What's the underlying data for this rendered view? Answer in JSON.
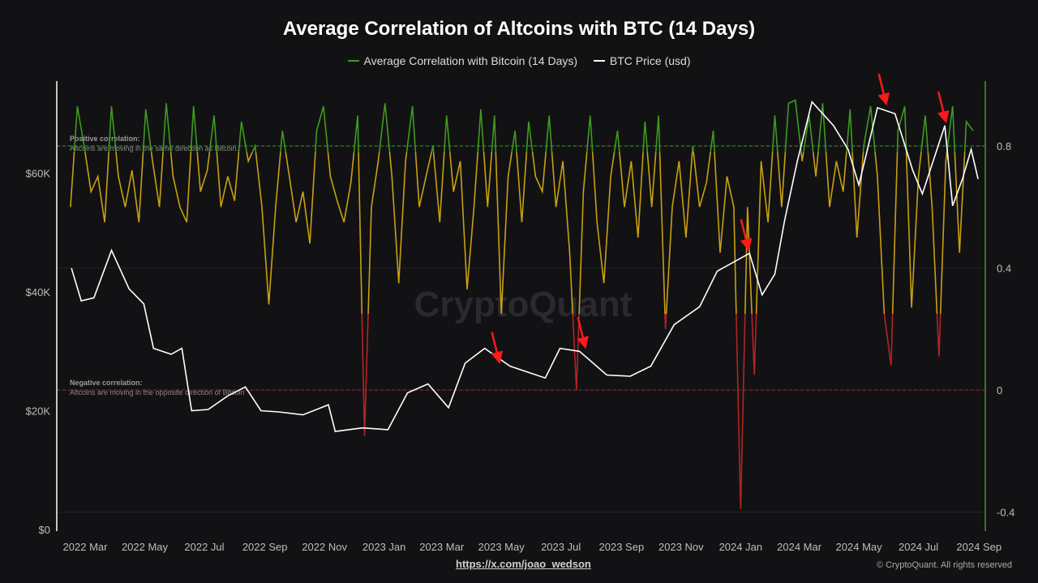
{
  "chart_data": {
    "type": "line",
    "title": "Average Correlation of Altcoins with BTC (14 Days)",
    "legend_placement": "top-center",
    "series": [
      {
        "name": "Average Correlation with Bitcoin (14 Days)",
        "axis": "right",
        "color": "#3f9a1e",
        "color_mid": "#c9a010",
        "color_low": "#b42424",
        "start_date": "2022-02-14",
        "interval": "weekly",
        "values": [
          0.6,
          0.93,
          0.8,
          0.65,
          0.7,
          0.55,
          0.93,
          0.7,
          0.6,
          0.72,
          0.55,
          0.92,
          0.75,
          0.6,
          0.94,
          0.7,
          0.6,
          0.55,
          0.93,
          0.65,
          0.72,
          0.9,
          0.6,
          0.7,
          0.62,
          0.88,
          0.75,
          0.8,
          0.6,
          0.28,
          0.6,
          0.85,
          0.7,
          0.55,
          0.65,
          0.48,
          0.85,
          0.93,
          0.7,
          0.62,
          0.55,
          0.68,
          0.9,
          -0.15,
          0.6,
          0.75,
          0.94,
          0.7,
          0.35,
          0.75,
          0.93,
          0.6,
          0.7,
          0.8,
          0.55,
          0.9,
          0.65,
          0.75,
          0.33,
          0.6,
          0.92,
          0.6,
          0.9,
          0.25,
          0.7,
          0.85,
          0.55,
          0.88,
          0.7,
          0.65,
          0.9,
          0.6,
          0.75,
          0.45,
          0.0,
          0.65,
          0.9,
          0.55,
          0.35,
          0.7,
          0.85,
          0.6,
          0.75,
          0.5,
          0.88,
          0.6,
          0.9,
          0.2,
          0.6,
          0.75,
          0.5,
          0.8,
          0.6,
          0.68,
          0.85,
          0.45,
          0.7,
          0.6,
          -0.39,
          0.6,
          0.05,
          0.75,
          0.55,
          0.9,
          0.6,
          0.94,
          0.95,
          0.75,
          0.9,
          0.7,
          0.94,
          0.6,
          0.75,
          0.65,
          0.92,
          0.5,
          0.8,
          0.93,
          0.7,
          0.25,
          0.08,
          0.85,
          0.93,
          0.27,
          0.7,
          0.9,
          0.6,
          0.11,
          0.75,
          0.93,
          0.45,
          0.88,
          0.85
        ]
      },
      {
        "name": "BTC Price (usd)",
        "axis": "left",
        "color": "#ffffff",
        "points": [
          [
            "2022-02-15",
            44000
          ],
          [
            "2022-02-25",
            38500
          ],
          [
            "2022-03-10",
            39000
          ],
          [
            "2022-03-28",
            47000
          ],
          [
            "2022-04-15",
            40500
          ],
          [
            "2022-04-30",
            38000
          ],
          [
            "2022-05-10",
            30500
          ],
          [
            "2022-05-28",
            29500
          ],
          [
            "2022-06-08",
            30500
          ],
          [
            "2022-06-18",
            20000
          ],
          [
            "2022-07-05",
            20200
          ],
          [
            "2022-07-25",
            22500
          ],
          [
            "2022-08-12",
            24000
          ],
          [
            "2022-08-28",
            20000
          ],
          [
            "2022-09-15",
            19800
          ],
          [
            "2022-10-10",
            19300
          ],
          [
            "2022-11-05",
            21000
          ],
          [
            "2022-11-12",
            16500
          ],
          [
            "2022-12-10",
            17100
          ],
          [
            "2023-01-05",
            16800
          ],
          [
            "2023-01-25",
            23000
          ],
          [
            "2023-02-15",
            24500
          ],
          [
            "2023-03-08",
            20500
          ],
          [
            "2023-03-25",
            28000
          ],
          [
            "2023-04-14",
            30500
          ],
          [
            "2023-05-10",
            27500
          ],
          [
            "2023-06-15",
            25500
          ],
          [
            "2023-06-30",
            30500
          ],
          [
            "2023-07-20",
            30000
          ],
          [
            "2023-08-17",
            26000
          ],
          [
            "2023-09-10",
            25800
          ],
          [
            "2023-10-01",
            27500
          ],
          [
            "2023-10-25",
            34500
          ],
          [
            "2023-11-20",
            37500
          ],
          [
            "2023-12-08",
            43500
          ],
          [
            "2024-01-10",
            46500
          ],
          [
            "2024-01-23",
            39500
          ],
          [
            "2024-02-05",
            43000
          ],
          [
            "2024-02-15",
            52000
          ],
          [
            "2024-02-28",
            62000
          ],
          [
            "2024-03-14",
            72000
          ],
          [
            "2024-04-05",
            68000
          ],
          [
            "2024-04-20",
            64000
          ],
          [
            "2024-05-01",
            58000
          ],
          [
            "2024-05-20",
            71000
          ],
          [
            "2024-06-07",
            70000
          ],
          [
            "2024-06-25",
            60500
          ],
          [
            "2024-07-05",
            56500
          ],
          [
            "2024-07-28",
            68000
          ],
          [
            "2024-08-05",
            54500
          ],
          [
            "2024-08-15",
            59000
          ],
          [
            "2024-08-24",
            64000
          ],
          [
            "2024-08-31",
            59000
          ]
        ]
      }
    ],
    "left_axis": {
      "ticks": [
        "$0",
        "$20K",
        "$40K",
        "$60K"
      ],
      "tick_values": [
        0,
        20000,
        40000,
        60000
      ],
      "range": [
        0,
        76000
      ]
    },
    "right_axis": {
      "ticks": [
        "-0.4",
        "0",
        "0.4",
        "0.8"
      ],
      "tick_values": [
        -0.4,
        0,
        0.4,
        0.8
      ],
      "range": [
        -0.45,
        1.02
      ]
    },
    "x_axis": {
      "ticks": [
        "2022 Mar",
        "2022 May",
        "2022 Jul",
        "2022 Sep",
        "2022 Nov",
        "2023 Jan",
        "2023 Mar",
        "2023 May",
        "2023 Jul",
        "2023 Sep",
        "2023 Nov",
        "2024 Jan",
        "2024 Mar",
        "2024 May",
        "2024 Jul",
        "2024 Sep"
      ],
      "tick_dates": [
        "2022-03-01",
        "2022-05-01",
        "2022-07-01",
        "2022-09-01",
        "2022-11-01",
        "2023-01-01",
        "2023-03-01",
        "2023-05-01",
        "2023-07-01",
        "2023-09-01",
        "2023-11-01",
        "2024-01-01",
        "2024-03-01",
        "2024-05-01",
        "2024-07-01",
        "2024-09-01"
      ]
    },
    "reference_lines": [
      {
        "value": 0.8,
        "color": "#3f9a1e",
        "style": "dashed",
        "label": "Positive correlation:",
        "text": "Altcoins are moving in the same direction as Bitcoin."
      },
      {
        "value": 0,
        "color": "#b42424",
        "style": "dashed",
        "label": "Negative correlation:",
        "text": "Altcoins are moving in the opposite direction of Bitcoin"
      }
    ],
    "annotations": {
      "type": "red-arrows",
      "color": "#ff1a1a",
      "dates": [
        "2023-04-28",
        "2023-07-25",
        "2024-01-08",
        "2024-05-28",
        "2024-07-28"
      ]
    },
    "watermark": "CryptoQuant"
  },
  "footer": {
    "link": "https://x.com/joao_wedson",
    "copyright": "© CryptoQuant. All rights reserved"
  }
}
